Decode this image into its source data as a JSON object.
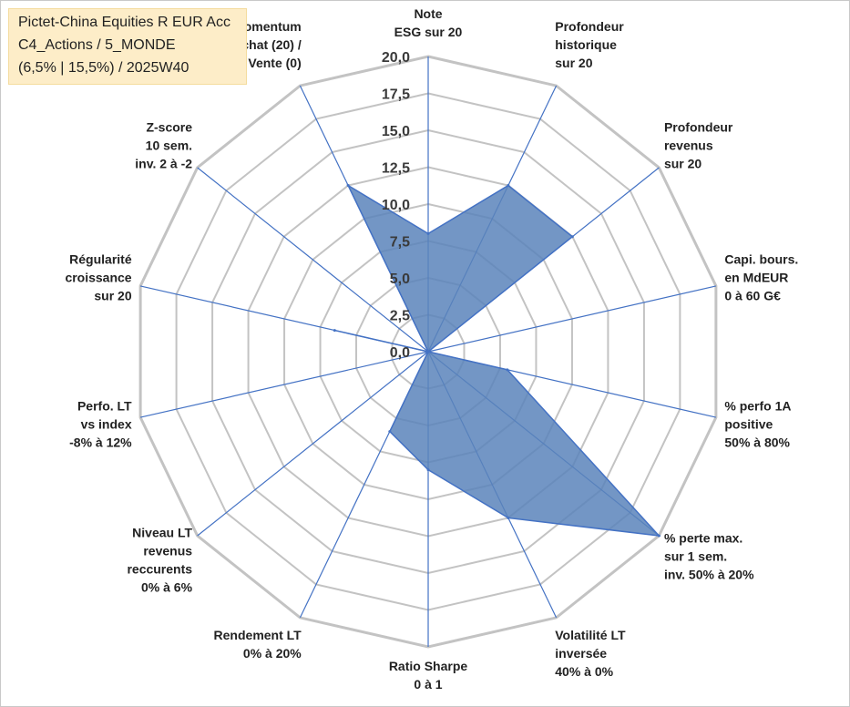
{
  "infobox": {
    "line1": "Pictet-China Equities R EUR Acc",
    "line2": "C4_Actions / 5_MONDE",
    "line3": "(6,5% | 15,5%) / 2025W40"
  },
  "chart_data": {
    "type": "radar",
    "rlim": [
      0,
      20
    ],
    "r_ticks": [
      "0,0",
      "2,5",
      "5,0",
      "7,5",
      "10,0",
      "12,5",
      "15,0",
      "17,5",
      "20,0"
    ],
    "grid": true,
    "axes": [
      [
        "Note",
        "ESG sur 20"
      ],
      [
        "Profondeur",
        "historique",
        "sur 20"
      ],
      [
        "Profondeur",
        "revenus",
        "sur 20"
      ],
      [
        "Capi. bours.",
        "en MdEUR",
        "0 à 60 G€"
      ],
      [
        "% perfo 1A",
        "positive",
        "50% à 80%"
      ],
      [
        "% perte max.",
        "sur 1 sem.",
        "inv. 50% à 20%"
      ],
      [
        "Volatilité LT",
        "inversée",
        "40% à 0%"
      ],
      [
        "Ratio Sharpe",
        "0 à 1"
      ],
      [
        "Rendement LT",
        "0% à 20%"
      ],
      [
        "Niveau LT",
        "revenus",
        "reccurents",
        "0% à 6%"
      ],
      [
        "Perfo. LT",
        "vs index",
        "-8% à 12%"
      ],
      [
        "Régularité",
        "croissance",
        "sur 20"
      ],
      [
        "Z-score",
        "10 sem.",
        "inv. 2 à -2"
      ],
      [
        "Momentum",
        "Achat (20) /",
        "Vente (0)"
      ]
    ],
    "series": [
      {
        "values": [
          8,
          12.5,
          12.5,
          0,
          5.5,
          20,
          12.5,
          8,
          6,
          0,
          0,
          6.5,
          0,
          12.5
        ]
      }
    ],
    "colors": {
      "fill": "#5b84bb",
      "stroke": "#4472c4",
      "grid": "#c3c3c3",
      "spoke": "#4472c4"
    }
  }
}
